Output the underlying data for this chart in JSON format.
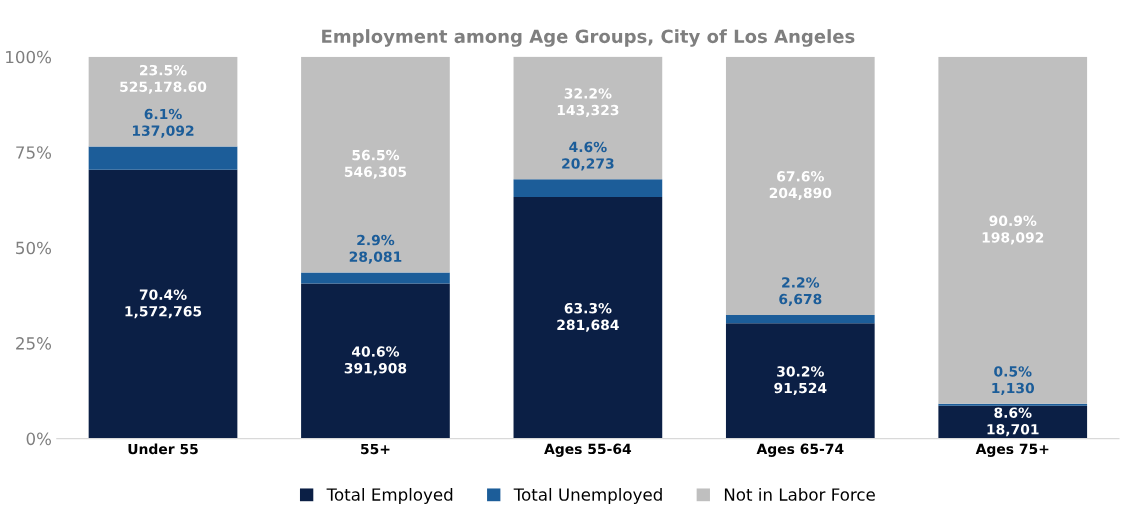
{
  "chart_data": {
    "type": "bar",
    "title": "Employment among Age Groups, City of Los Angeles",
    "categories": [
      "Under 55",
      "55+",
      "Ages 55-64",
      "Ages 65-74",
      "Ages 75+"
    ],
    "stacked": true,
    "series": [
      {
        "name": "Total Employed",
        "color": "#0b1f45",
        "values": [
          70.4,
          40.6,
          63.3,
          30.2,
          8.6
        ],
        "value_labels": [
          "70.4%\n1,572,765",
          "40.6%\n391,908",
          "63.3%\n281,684",
          "30.2%\n91,524",
          "8.6%\n18,701"
        ]
      },
      {
        "name": "Total Unemployed",
        "color": "#1c5d99",
        "values": [
          6.1,
          2.9,
          4.6,
          2.2,
          0.5
        ],
        "value_labels": [
          "6.1%\n137,092",
          "2.9%\n28,081",
          "4.6%\n20,273",
          "2.2%\n6,678",
          "0.5%\n1,130"
        ]
      },
      {
        "name": "Not in Labor Force",
        "color": "#bfbfbf",
        "values": [
          23.5,
          56.5,
          32.2,
          67.6,
          90.9
        ],
        "value_labels": [
          "23.5%\n525,178.60",
          "56.5%\n546,305",
          "32.2%\n143,323",
          "67.6%\n204,890",
          "90.9%\n198,092"
        ]
      }
    ],
    "ylim": [
      0,
      100
    ],
    "yticks": [
      {
        "value": 0,
        "label": "0%"
      },
      {
        "value": 25,
        "label": "25%"
      },
      {
        "value": 50,
        "label": "50%"
      },
      {
        "value": 75,
        "label": "75%"
      },
      {
        "value": 100,
        "label": "100%"
      }
    ],
    "grid": false,
    "legend": "bottom"
  }
}
